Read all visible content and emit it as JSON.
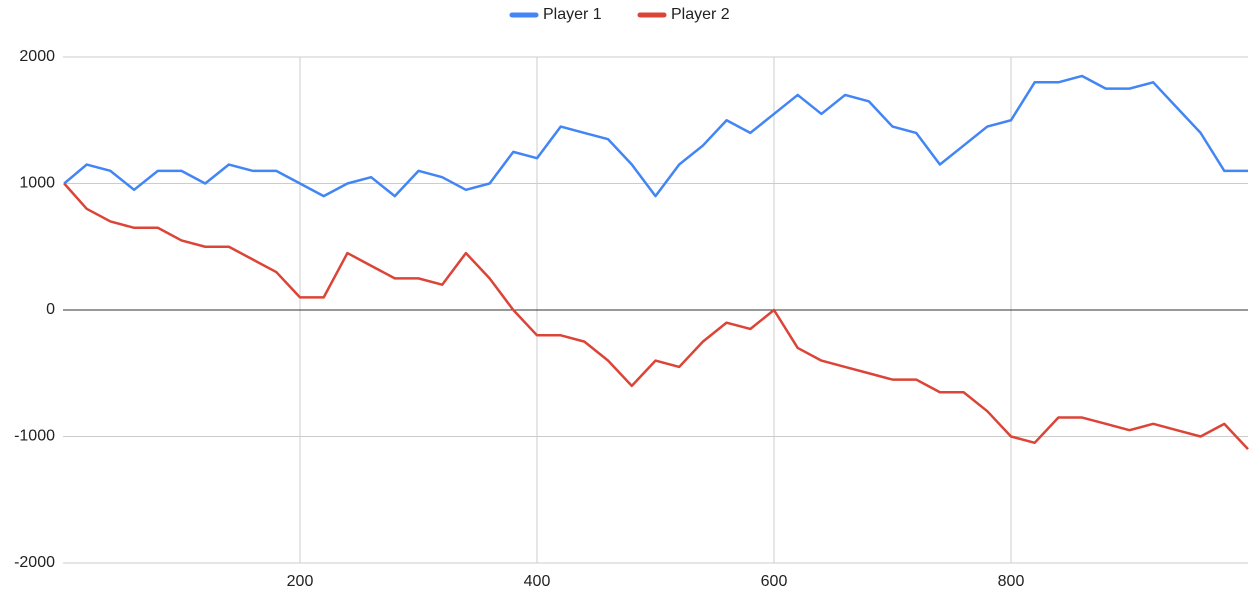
{
  "chart_data": {
    "type": "line",
    "x": [
      1,
      20,
      40,
      60,
      80,
      100,
      120,
      140,
      160,
      180,
      200,
      220,
      240,
      260,
      280,
      300,
      320,
      340,
      360,
      380,
      400,
      420,
      440,
      460,
      480,
      500,
      520,
      540,
      560,
      580,
      600,
      620,
      640,
      660,
      680,
      700,
      720,
      740,
      760,
      780,
      800,
      820,
      840,
      860,
      880,
      900,
      920,
      940,
      960,
      980,
      1000
    ],
    "series": [
      {
        "name": "Player 1",
        "color": "#4285f4",
        "values": [
          1000,
          1150,
          1100,
          950,
          1100,
          1100,
          1000,
          1150,
          1100,
          1100,
          1000,
          900,
          1000,
          1050,
          900,
          1100,
          1050,
          950,
          1000,
          1250,
          1200,
          1450,
          1400,
          1350,
          1150,
          900,
          1150,
          1300,
          1500,
          1400,
          1550,
          1700,
          1550,
          1700,
          1650,
          1450,
          1400,
          1150,
          1300,
          1450,
          1500,
          1800,
          1800,
          1850,
          1750,
          1750,
          1800,
          1600,
          1400,
          1100,
          1100
        ]
      },
      {
        "name": "Player 2",
        "color": "#db4437",
        "values": [
          1000,
          800,
          700,
          650,
          650,
          550,
          500,
          500,
          400,
          300,
          100,
          100,
          450,
          350,
          250,
          250,
          200,
          450,
          250,
          0,
          -200,
          -200,
          -250,
          -400,
          -600,
          -400,
          -450,
          -250,
          -100,
          -150,
          0,
          -300,
          -400,
          -450,
          -500,
          -550,
          -550,
          -650,
          -650,
          -800,
          -1000,
          -1050,
          -850,
          -850,
          -900,
          -950,
          -900,
          -950,
          -1000,
          -900,
          -1100
        ]
      }
    ],
    "xlim": [
      0,
      1000
    ],
    "xticks": [
      200,
      400,
      600,
      800
    ],
    "ylim": [
      -2000,
      2000
    ],
    "yticks": [
      -2000,
      -1000,
      0,
      1000,
      2000
    ],
    "grid": true,
    "legend": "top"
  }
}
